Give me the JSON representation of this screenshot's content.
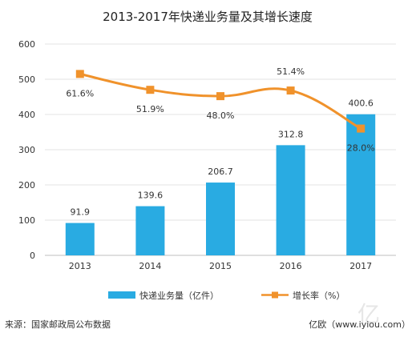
{
  "chart_data": {
    "type": "bar",
    "title": "2013-2017年快递业务量及其增长速度",
    "categories": [
      "2013",
      "2014",
      "2015",
      "2016",
      "2017"
    ],
    "ylim": [
      0,
      600
    ],
    "yticks": [
      0,
      100,
      200,
      300,
      400,
      500,
      600
    ],
    "grid": true,
    "legend_position": "bottom",
    "series": [
      {
        "name": "快递业务量（亿件）",
        "type": "bar",
        "color": "#29abe2",
        "values": [
          91.9,
          139.6,
          206.7,
          312.8,
          400.6
        ],
        "labels": [
          "91.9",
          "139.6",
          "206.7",
          "312.8",
          "400.6"
        ]
      },
      {
        "name": "增长率（%）",
        "type": "line",
        "color": "#f0922b",
        "values": [
          61.6,
          51.9,
          48.0,
          51.4,
          28.0
        ],
        "plot_positions": [
          515,
          470,
          452,
          468,
          360
        ],
        "labels": [
          "61.6%",
          "51.9%",
          "48.0%",
          "51.4%",
          "28.0%"
        ]
      }
    ]
  },
  "footer": {
    "source": "来源：国家邮政局公布数据",
    "credit": "亿欧（www.iyiou.com）"
  }
}
